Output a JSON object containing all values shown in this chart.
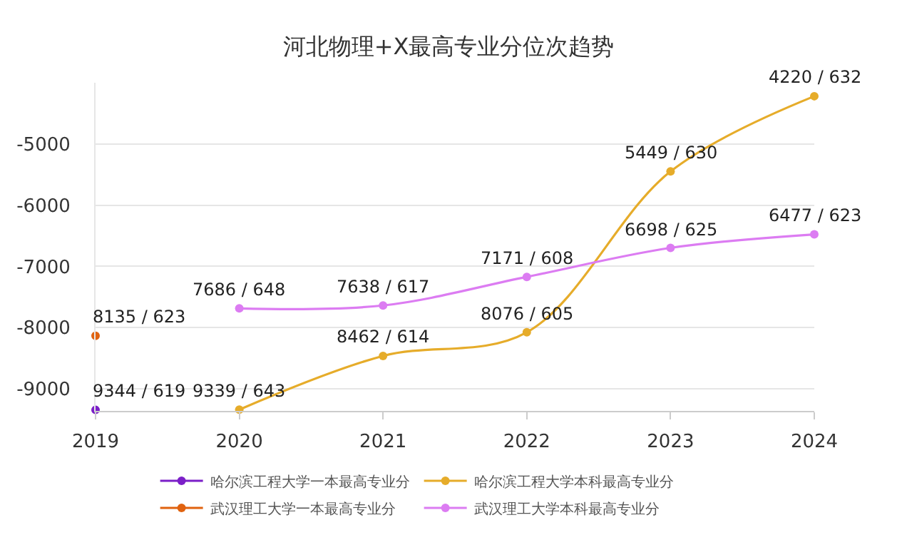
{
  "chart_data": {
    "type": "line",
    "title": "河北物理+X最高专业分位次趋势",
    "x": [
      2019,
      2020,
      2021,
      2022,
      2023,
      2024
    ],
    "series": [
      {
        "name": "哈尔滨工程大学一本最高专业分",
        "color": "#7b1fc8",
        "values": [
          -9344,
          null,
          null,
          null,
          null,
          null
        ]
      },
      {
        "name": "哈尔滨工程大学本科最高专业分",
        "color": "#e6ac2a",
        "values": [
          null,
          -9339,
          -8462,
          -8076,
          -5449,
          -4220
        ]
      },
      {
        "name": "武汉理工大学一本最高专业分",
        "color": "#e0620f",
        "values": [
          -8135,
          null,
          null,
          null,
          null,
          null
        ]
      },
      {
        "name": "武汉理工大学本科最高专业分",
        "color": "#dc7cf2",
        "values": [
          null,
          -7686,
          -7638,
          -7171,
          -6698,
          -6477
        ]
      }
    ],
    "annotations": [
      {
        "text": "9344 / 619",
        "x": 2019,
        "y": -9344
      },
      {
        "text": "9339 / 643",
        "x": 2020,
        "y": -9339
      },
      {
        "text": "8462 / 614",
        "x": 2021,
        "y": -8462
      },
      {
        "text": "8076 / 605",
        "x": 2022,
        "y": -8076
      },
      {
        "text": "5449 / 630",
        "x": 2023,
        "y": -5449
      },
      {
        "text": "4220 / 632",
        "x": 2024,
        "y": -4220
      },
      {
        "text": "8135 / 623",
        "x": 2019,
        "y": -8135
      },
      {
        "text": "7686 / 648",
        "x": 2020,
        "y": -7686
      },
      {
        "text": "7638 / 617",
        "x": 2021,
        "y": -7638
      },
      {
        "text": "7171 / 608",
        "x": 2022,
        "y": -7171
      },
      {
        "text": "6698 / 625",
        "x": 2023,
        "y": -6698
      },
      {
        "text": "6477 / 623",
        "x": 2024,
        "y": -6477
      }
    ],
    "xlim": [
      2019,
      2024
    ],
    "xticks": [
      2019,
      2020,
      2021,
      2022,
      2023,
      2024
    ],
    "ylim": [
      -9360,
      -4000
    ],
    "yticks": [
      -9000,
      -8000,
      -7000,
      -6000,
      -5000
    ],
    "grid": "y",
    "legend": "bottom",
    "marker": "circle",
    "line_style": "solid"
  }
}
